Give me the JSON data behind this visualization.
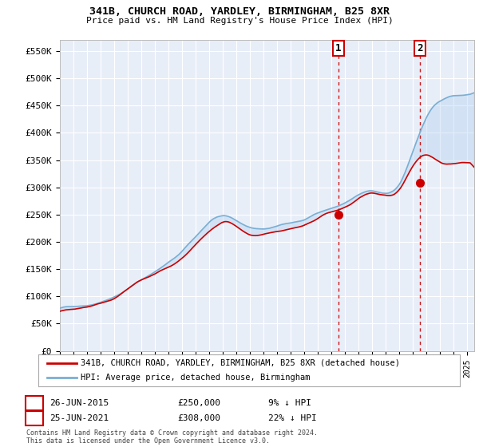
{
  "title": "341B, CHURCH ROAD, YARDLEY, BIRMINGHAM, B25 8XR",
  "subtitle": "Price paid vs. HM Land Registry's House Price Index (HPI)",
  "ylabel_ticks": [
    "£0",
    "£50K",
    "£100K",
    "£150K",
    "£200K",
    "£250K",
    "£300K",
    "£350K",
    "£400K",
    "£450K",
    "£500K",
    "£550K"
  ],
  "ytick_values": [
    0,
    50000,
    100000,
    150000,
    200000,
    250000,
    300000,
    350000,
    400000,
    450000,
    500000,
    550000
  ],
  "ylim": [
    0,
    570000
  ],
  "background_color": "#ffffff",
  "plot_bg_color": "#e8eef8",
  "grid_color": "#ffffff",
  "hpi_color": "#7aafd4",
  "price_color": "#cc0000",
  "vline_color": "#cc0000",
  "fill_color": "#c8d8ee",
  "point1_x": 2015.49,
  "point1_y": 250000,
  "point2_x": 2021.49,
  "point2_y": 308000,
  "legend_label1": "341B, CHURCH ROAD, YARDLEY, BIRMINGHAM, B25 8XR (detached house)",
  "legend_label2": "HPI: Average price, detached house, Birmingham",
  "table_row1": [
    "1",
    "26-JUN-2015",
    "£250,000",
    "9% ↓ HPI"
  ],
  "table_row2": [
    "2",
    "25-JUN-2021",
    "£308,000",
    "22% ↓ HPI"
  ],
  "footnote": "Contains HM Land Registry data © Crown copyright and database right 2024.\nThis data is licensed under the Open Government Licence v3.0.",
  "xmin": 1995,
  "xmax": 2025.5
}
